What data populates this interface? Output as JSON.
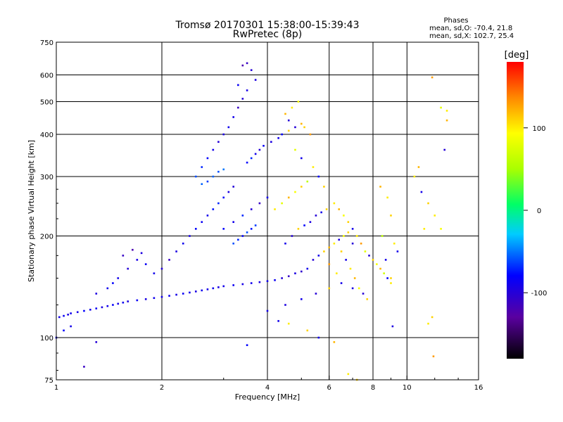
{
  "header": {
    "title_line1": "Tromsø 20170301 15:38:00-15:39:43",
    "title_line2": "RwPretec (8p)",
    "stats_heading": "Phases",
    "stats_o": "mean, sd,O: -70.4, 21.8",
    "stats_x": "mean, sd,X: 102.7, 25.4"
  },
  "colorbar": {
    "unit_label": "[deg]",
    "range": [
      -180,
      180
    ],
    "ticks": [
      {
        "value": 100,
        "label": "100"
      },
      {
        "value": 0,
        "label": "0"
      },
      {
        "value": -100,
        "label": "-100"
      }
    ]
  },
  "chart_data": {
    "type": "scatter",
    "title": "Tromsø 20170301 15:38:00-15:39:43",
    "subtitle": "RwPretec (8p)",
    "xlabel": "Frequency [MHz]",
    "ylabel": "Stationary phase Virtual Height [km]",
    "x_scale": "log",
    "y_scale": "log",
    "xlim": [
      1,
      16
    ],
    "ylim": [
      75,
      750
    ],
    "xticks": [
      {
        "value": 1,
        "label": "1"
      },
      {
        "value": 2,
        "label": "2"
      },
      {
        "value": 4,
        "label": "4"
      },
      {
        "value": 6,
        "label": "6"
      },
      {
        "value": 8,
        "label": "8"
      },
      {
        "value": 10,
        "label": "10"
      },
      {
        "value": 16,
        "label": "16"
      }
    ],
    "yticks": [
      {
        "value": 75,
        "label": "75"
      },
      {
        "value": 100,
        "label": "100"
      },
      {
        "value": 200,
        "label": "200"
      },
      {
        "value": 300,
        "label": "300"
      },
      {
        "value": 400,
        "label": "400"
      },
      {
        "value": 500,
        "label": "500"
      },
      {
        "value": 600,
        "label": "600"
      },
      {
        "value": 750,
        "label": "750"
      }
    ],
    "x_gridlines": [
      2,
      4,
      6,
      8,
      10
    ],
    "y_gridlines": [
      100,
      200,
      300,
      400,
      500,
      600
    ],
    "grid": true,
    "color_variable": "phase [deg]",
    "color_range": [
      -180,
      180
    ],
    "points": [
      [
        1.02,
        115,
        -90
      ],
      [
        1.05,
        116,
        -85
      ],
      [
        1.08,
        117,
        -95
      ],
      [
        1.1,
        118,
        -88
      ],
      [
        1.15,
        119,
        -92
      ],
      [
        1.2,
        120,
        -80
      ],
      [
        1.25,
        121,
        -90
      ],
      [
        1.3,
        122,
        -86
      ],
      [
        1.35,
        123,
        -94
      ],
      [
        1.4,
        124,
        -89
      ],
      [
        1.45,
        125,
        -82
      ],
      [
        1.5,
        126,
        -91
      ],
      [
        1.55,
        127,
        -87
      ],
      [
        1.6,
        128,
        -95
      ],
      [
        1.7,
        129,
        -84
      ],
      [
        1.8,
        130,
        -93
      ],
      [
        1.9,
        131,
        -88
      ],
      [
        2.0,
        132,
        -90
      ],
      [
        2.1,
        133,
        -86
      ],
      [
        2.2,
        134,
        -92
      ],
      [
        2.3,
        135,
        -85
      ],
      [
        2.4,
        136,
        -89
      ],
      [
        2.5,
        137,
        -94
      ],
      [
        2.6,
        138,
        -88
      ],
      [
        2.7,
        139,
        -91
      ],
      [
        2.8,
        140,
        -87
      ],
      [
        2.9,
        141,
        -93
      ],
      [
        3.0,
        142,
        -90
      ],
      [
        3.2,
        143,
        -86
      ],
      [
        3.4,
        144,
        -92
      ],
      [
        3.6,
        145,
        -88
      ],
      [
        3.8,
        146,
        -95
      ],
      [
        4.0,
        147,
        -90
      ],
      [
        4.2,
        148,
        -86
      ],
      [
        4.4,
        150,
        -100
      ],
      [
        4.6,
        152,
        -110
      ],
      [
        4.8,
        155,
        -95
      ],
      [
        5.0,
        157,
        -105
      ],
      [
        5.2,
        160,
        -90
      ],
      [
        1.3,
        135,
        -95
      ],
      [
        1.4,
        140,
        -88
      ],
      [
        1.5,
        150,
        -90
      ],
      [
        1.6,
        160,
        -100
      ],
      [
        1.7,
        170,
        -92
      ],
      [
        1.8,
        165,
        -85
      ],
      [
        1.55,
        175,
        -110
      ],
      [
        1.65,
        182,
        -120
      ],
      [
        1.75,
        178,
        -95
      ],
      [
        1.45,
        145,
        -80
      ],
      [
        1.9,
        155,
        -90
      ],
      [
        2.0,
        160,
        -100
      ],
      [
        2.1,
        170,
        -110
      ],
      [
        2.2,
        180,
        -95
      ],
      [
        2.3,
        190,
        -88
      ],
      [
        2.4,
        200,
        -92
      ],
      [
        2.5,
        210,
        -80
      ],
      [
        2.6,
        220,
        -85
      ],
      [
        2.7,
        230,
        -90
      ],
      [
        2.8,
        240,
        -75
      ],
      [
        2.9,
        250,
        -70
      ],
      [
        3.0,
        260,
        -80
      ],
      [
        3.1,
        270,
        -95
      ],
      [
        3.2,
        280,
        -100
      ],
      [
        2.5,
        300,
        -60
      ],
      [
        2.6,
        320,
        -70
      ],
      [
        2.7,
        340,
        -80
      ],
      [
        2.8,
        360,
        -90
      ],
      [
        2.9,
        380,
        -100
      ],
      [
        3.0,
        400,
        -95
      ],
      [
        3.1,
        420,
        -88
      ],
      [
        3.2,
        450,
        -90
      ],
      [
        3.3,
        480,
        -110
      ],
      [
        3.4,
        510,
        -100
      ],
      [
        3.5,
        540,
        -92
      ],
      [
        3.3,
        560,
        -85
      ],
      [
        3.4,
        640,
        -120
      ],
      [
        3.5,
        650,
        -110
      ],
      [
        3.6,
        620,
        -100
      ],
      [
        3.7,
        580,
        -95
      ],
      [
        3.0,
        210,
        -80
      ],
      [
        3.2,
        220,
        -90
      ],
      [
        3.4,
        230,
        -70
      ],
      [
        3.6,
        240,
        -100
      ],
      [
        3.8,
        250,
        -110
      ],
      [
        4.0,
        260,
        -90
      ],
      [
        4.2,
        240,
        100
      ],
      [
        4.4,
        250,
        80
      ],
      [
        4.6,
        260,
        120
      ],
      [
        4.8,
        270,
        90
      ],
      [
        5.0,
        280,
        110
      ],
      [
        5.2,
        290,
        60
      ],
      [
        4.5,
        460,
        120
      ],
      [
        4.7,
        480,
        100
      ],
      [
        4.9,
        500,
        90
      ],
      [
        5.1,
        420,
        110
      ],
      [
        5.3,
        400,
        130
      ],
      [
        4.6,
        440,
        -100
      ],
      [
        4.8,
        360,
        80
      ],
      [
        5.0,
        340,
        -90
      ],
      [
        5.4,
        320,
        100
      ],
      [
        5.6,
        300,
        -80
      ],
      [
        5.8,
        280,
        110
      ],
      [
        6.2,
        250,
        100
      ],
      [
        6.4,
        240,
        120
      ],
      [
        6.6,
        230,
        90
      ],
      [
        6.8,
        220,
        110
      ],
      [
        7.0,
        210,
        -90
      ],
      [
        7.2,
        200,
        100
      ],
      [
        7.4,
        190,
        130
      ],
      [
        7.6,
        180,
        80
      ],
      [
        7.8,
        175,
        -100
      ],
      [
        8.0,
        170,
        110
      ],
      [
        8.2,
        165,
        90
      ],
      [
        8.4,
        160,
        120
      ],
      [
        8.6,
        155,
        70
      ],
      [
        8.8,
        150,
        -80
      ],
      [
        9.0,
        145,
        100
      ],
      [
        6.5,
        180,
        110
      ],
      [
        6.7,
        170,
        -90
      ],
      [
        6.9,
        160,
        100
      ],
      [
        7.1,
        150,
        120
      ],
      [
        7.3,
        140,
        90
      ],
      [
        7.5,
        135,
        -100
      ],
      [
        7.7,
        130,
        110
      ],
      [
        6.0,
        165,
        130
      ],
      [
        6.3,
        155,
        100
      ],
      [
        8.5,
        200,
        60
      ],
      [
        9.2,
        190,
        100
      ],
      [
        9.4,
        180,
        -90
      ],
      [
        9.0,
        230,
        110
      ],
      [
        8.8,
        260,
        100
      ],
      [
        8.4,
        280,
        120
      ],
      [
        10.5,
        300,
        100
      ],
      [
        11.0,
        270,
        -90
      ],
      [
        11.5,
        250,
        110
      ],
      [
        12.0,
        230,
        100
      ],
      [
        12.5,
        210,
        90
      ],
      [
        11.2,
        210,
        100
      ],
      [
        10.8,
        320,
        120
      ],
      [
        12.8,
        360,
        -100
      ],
      [
        13.0,
        440,
        120
      ],
      [
        13.0,
        470,
        100
      ],
      [
        12.5,
        480,
        80
      ],
      [
        11.8,
        590,
        130
      ],
      [
        11.5,
        110,
        100
      ],
      [
        11.8,
        115,
        110
      ],
      [
        11.9,
        88,
        130
      ],
      [
        5.4,
        170,
        -100
      ],
      [
        5.6,
        175,
        -90
      ],
      [
        5.8,
        180,
        110
      ],
      [
        6.0,
        185,
        120
      ],
      [
        6.2,
        190,
        100
      ],
      [
        6.4,
        195,
        -95
      ],
      [
        6.6,
        200,
        90
      ],
      [
        6.8,
        205,
        110
      ],
      [
        7.0,
        190,
        -100
      ],
      [
        4.5,
        190,
        -90
      ],
      [
        4.7,
        200,
        -100
      ],
      [
        4.9,
        210,
        110
      ],
      [
        3.5,
        330,
        -80
      ],
      [
        3.6,
        340,
        -70
      ],
      [
        3.7,
        350,
        -90
      ],
      [
        3.8,
        360,
        -100
      ],
      [
        3.9,
        370,
        -85
      ],
      [
        4.1,
        380,
        -95
      ],
      [
        4.3,
        390,
        -90
      ],
      [
        4.4,
        400,
        -80
      ],
      [
        4.6,
        410,
        110
      ],
      [
        4.8,
        420,
        -100
      ],
      [
        5.0,
        430,
        120
      ],
      [
        3.2,
        190,
        -60
      ],
      [
        3.3,
        195,
        -70
      ],
      [
        3.4,
        200,
        -80
      ],
      [
        3.5,
        205,
        -60
      ],
      [
        3.6,
        210,
        -75
      ],
      [
        3.7,
        215,
        -65
      ],
      [
        5.5,
        230,
        -100
      ],
      [
        5.7,
        235,
        -90
      ],
      [
        5.9,
        240,
        110
      ],
      [
        5.3,
        220,
        -95
      ],
      [
        5.1,
        215,
        -80
      ],
      [
        2.8,
        300,
        -55
      ],
      [
        2.9,
        310,
        -60
      ],
      [
        3.0,
        315,
        -50
      ],
      [
        2.7,
        290,
        -65
      ],
      [
        2.6,
        285,
        -55
      ],
      [
        4.0,
        120,
        -90
      ],
      [
        4.5,
        125,
        -95
      ],
      [
        5.0,
        130,
        -90
      ],
      [
        5.5,
        135,
        -100
      ],
      [
        6.0,
        140,
        110
      ],
      [
        6.5,
        145,
        -90
      ],
      [
        7.0,
        140,
        -95
      ],
      [
        4.3,
        112,
        -90
      ],
      [
        4.6,
        110,
        100
      ],
      [
        5.2,
        105,
        110
      ],
      [
        5.6,
        100,
        -90
      ],
      [
        6.2,
        97,
        120
      ],
      [
        3.5,
        95,
        -80
      ],
      [
        1.3,
        97,
        -100
      ],
      [
        1.2,
        82,
        -110
      ],
      [
        1.05,
        105,
        -80
      ],
      [
        1.1,
        108,
        -90
      ],
      [
        1.0,
        100,
        -85
      ],
      [
        7.2,
        75,
        110
      ],
      [
        6.8,
        78,
        100
      ],
      [
        9.1,
        108,
        -95
      ],
      [
        9.0,
        150,
        110
      ],
      [
        8.7,
        170,
        -90
      ]
    ]
  }
}
